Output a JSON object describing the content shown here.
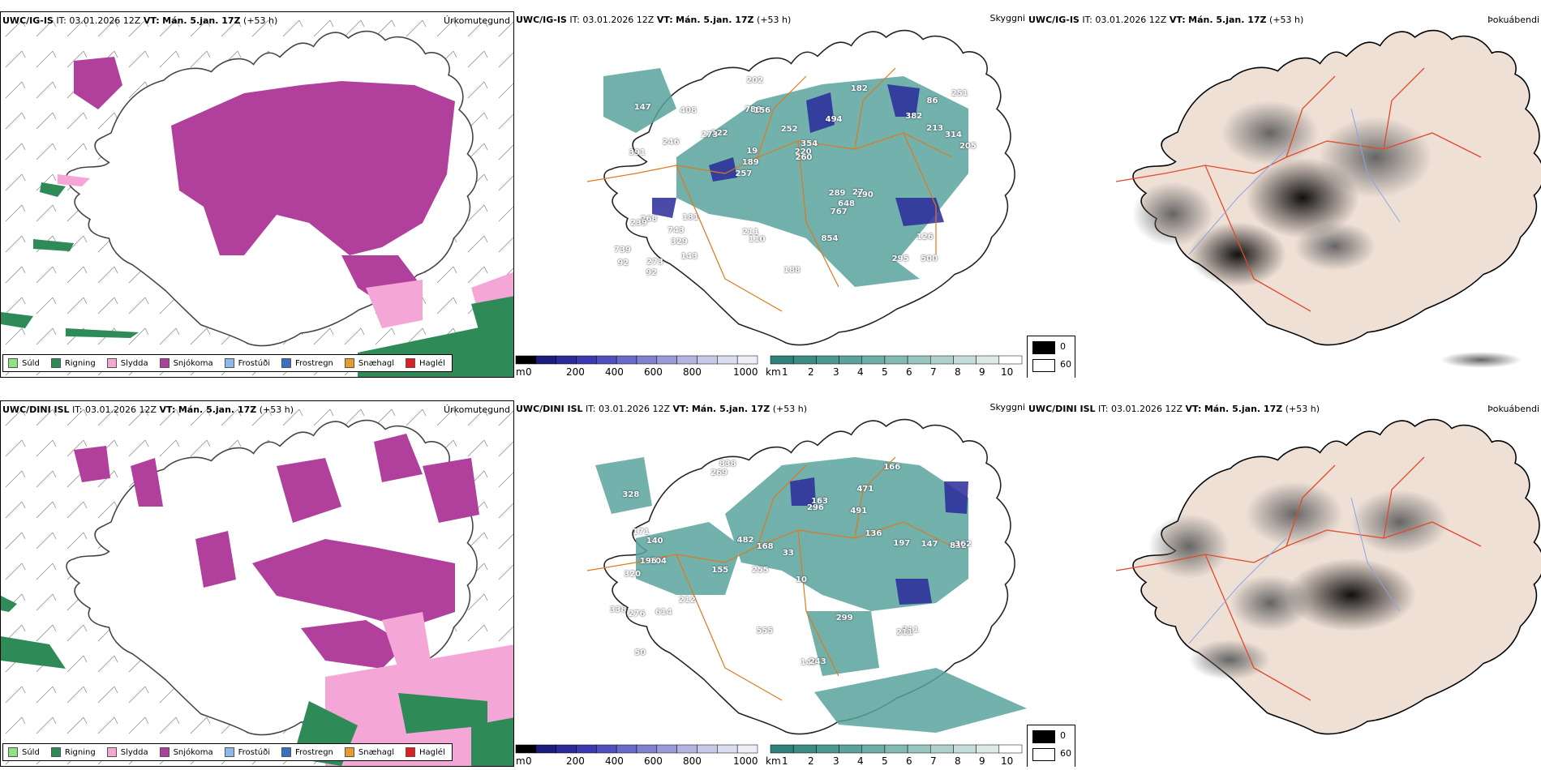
{
  "rows": [
    {
      "model": "UWC/IG-IS",
      "it_label": "IT:",
      "it_value": "03.01.2026 12Z",
      "vt_label": "VT:",
      "vt_value": "Mán. 5.jan. 17Z",
      "lead": "(+53 h)",
      "cloud_numbers": [
        "500",
        "391",
        "86",
        "257",
        "494",
        "273",
        "788",
        "252",
        "268",
        "122",
        "739",
        "329",
        "156",
        "354",
        "190",
        "147",
        "202",
        "205",
        "289",
        "213",
        "189",
        "211",
        "19",
        "408",
        "182",
        "181",
        "295",
        "126",
        "27",
        "188",
        "273",
        "246",
        "767",
        "143",
        "314",
        "220",
        "92",
        "110",
        "260",
        "239",
        "382",
        "251",
        "648",
        "854",
        "743",
        "92"
      ]
    },
    {
      "model": "UWC/DINI ISL",
      "it_label": "IT:",
      "it_value": "03.01.2026 12Z",
      "vt_label": "VT:",
      "vt_value": "Mán. 5.jan. 17Z",
      "lead": "(+53 h)",
      "cloud_numbers": [
        "838",
        "471",
        "832",
        "255",
        "10",
        "104",
        "328",
        "491",
        "320",
        "296",
        "33",
        "50",
        "269",
        "155",
        "149",
        "243",
        "555",
        "166",
        "136",
        "212",
        "140",
        "196",
        "362",
        "147",
        "338",
        "171",
        "168",
        "197",
        "311",
        "276",
        "211",
        "163",
        "614",
        "482",
        "299"
      ]
    }
  ],
  "panel_titles": {
    "precip_type": "Úrkomutegund",
    "cloud_base": "Skyggni",
    "fog": "Þokuábendi"
  },
  "precip_legend": [
    {
      "label": "Súld",
      "color": "#8fe08a"
    },
    {
      "label": "Rigning",
      "color": "#2e8b57"
    },
    {
      "label": "Slydda",
      "color": "#f4a6d6"
    },
    {
      "label": "Snjókoma",
      "color": "#b0409b"
    },
    {
      "label": "Frostúði",
      "color": "#8fb8e8"
    },
    {
      "label": "Frostregn",
      "color": "#3b6fc2"
    },
    {
      "label": "Snæhagl",
      "color": "#e89a2e"
    },
    {
      "label": "Haglél",
      "color": "#e02020"
    }
  ],
  "cloud_colorbar": {
    "unit": "m",
    "ticks": [
      "0",
      "200",
      "400",
      "600",
      "800",
      "1000"
    ],
    "colors": [
      "#000000",
      "#1b1b7a",
      "#2a2a9a",
      "#3a3ab0",
      "#5050c0",
      "#6a6ac8",
      "#8080d0",
      "#9a9ad8",
      "#b4b4e0",
      "#c8c8e8",
      "#dcdcf0",
      "#eeeef8"
    ]
  },
  "visibility_colorbar": {
    "unit": "km",
    "ticks": [
      "1",
      "2",
      "3",
      "4",
      "5",
      "6",
      "7",
      "8",
      "9",
      "10"
    ],
    "colors": [
      "#2f7f7a",
      "#3c8c86",
      "#4a9892",
      "#5aa39d",
      "#6daea8",
      "#82b9b3",
      "#98c5c0",
      "#aed1cd",
      "#c5ddda",
      "#dde9e7",
      "#ffffff"
    ]
  },
  "fog_legend": {
    "items": [
      {
        "label": "0",
        "color": "#000000"
      },
      {
        "label": "60",
        "color": "#ffffff"
      }
    ]
  },
  "colors": {
    "land_fog": "#efe0d6",
    "road": "#e0781e",
    "river": "#8aa6e6",
    "coast": "#000000"
  }
}
